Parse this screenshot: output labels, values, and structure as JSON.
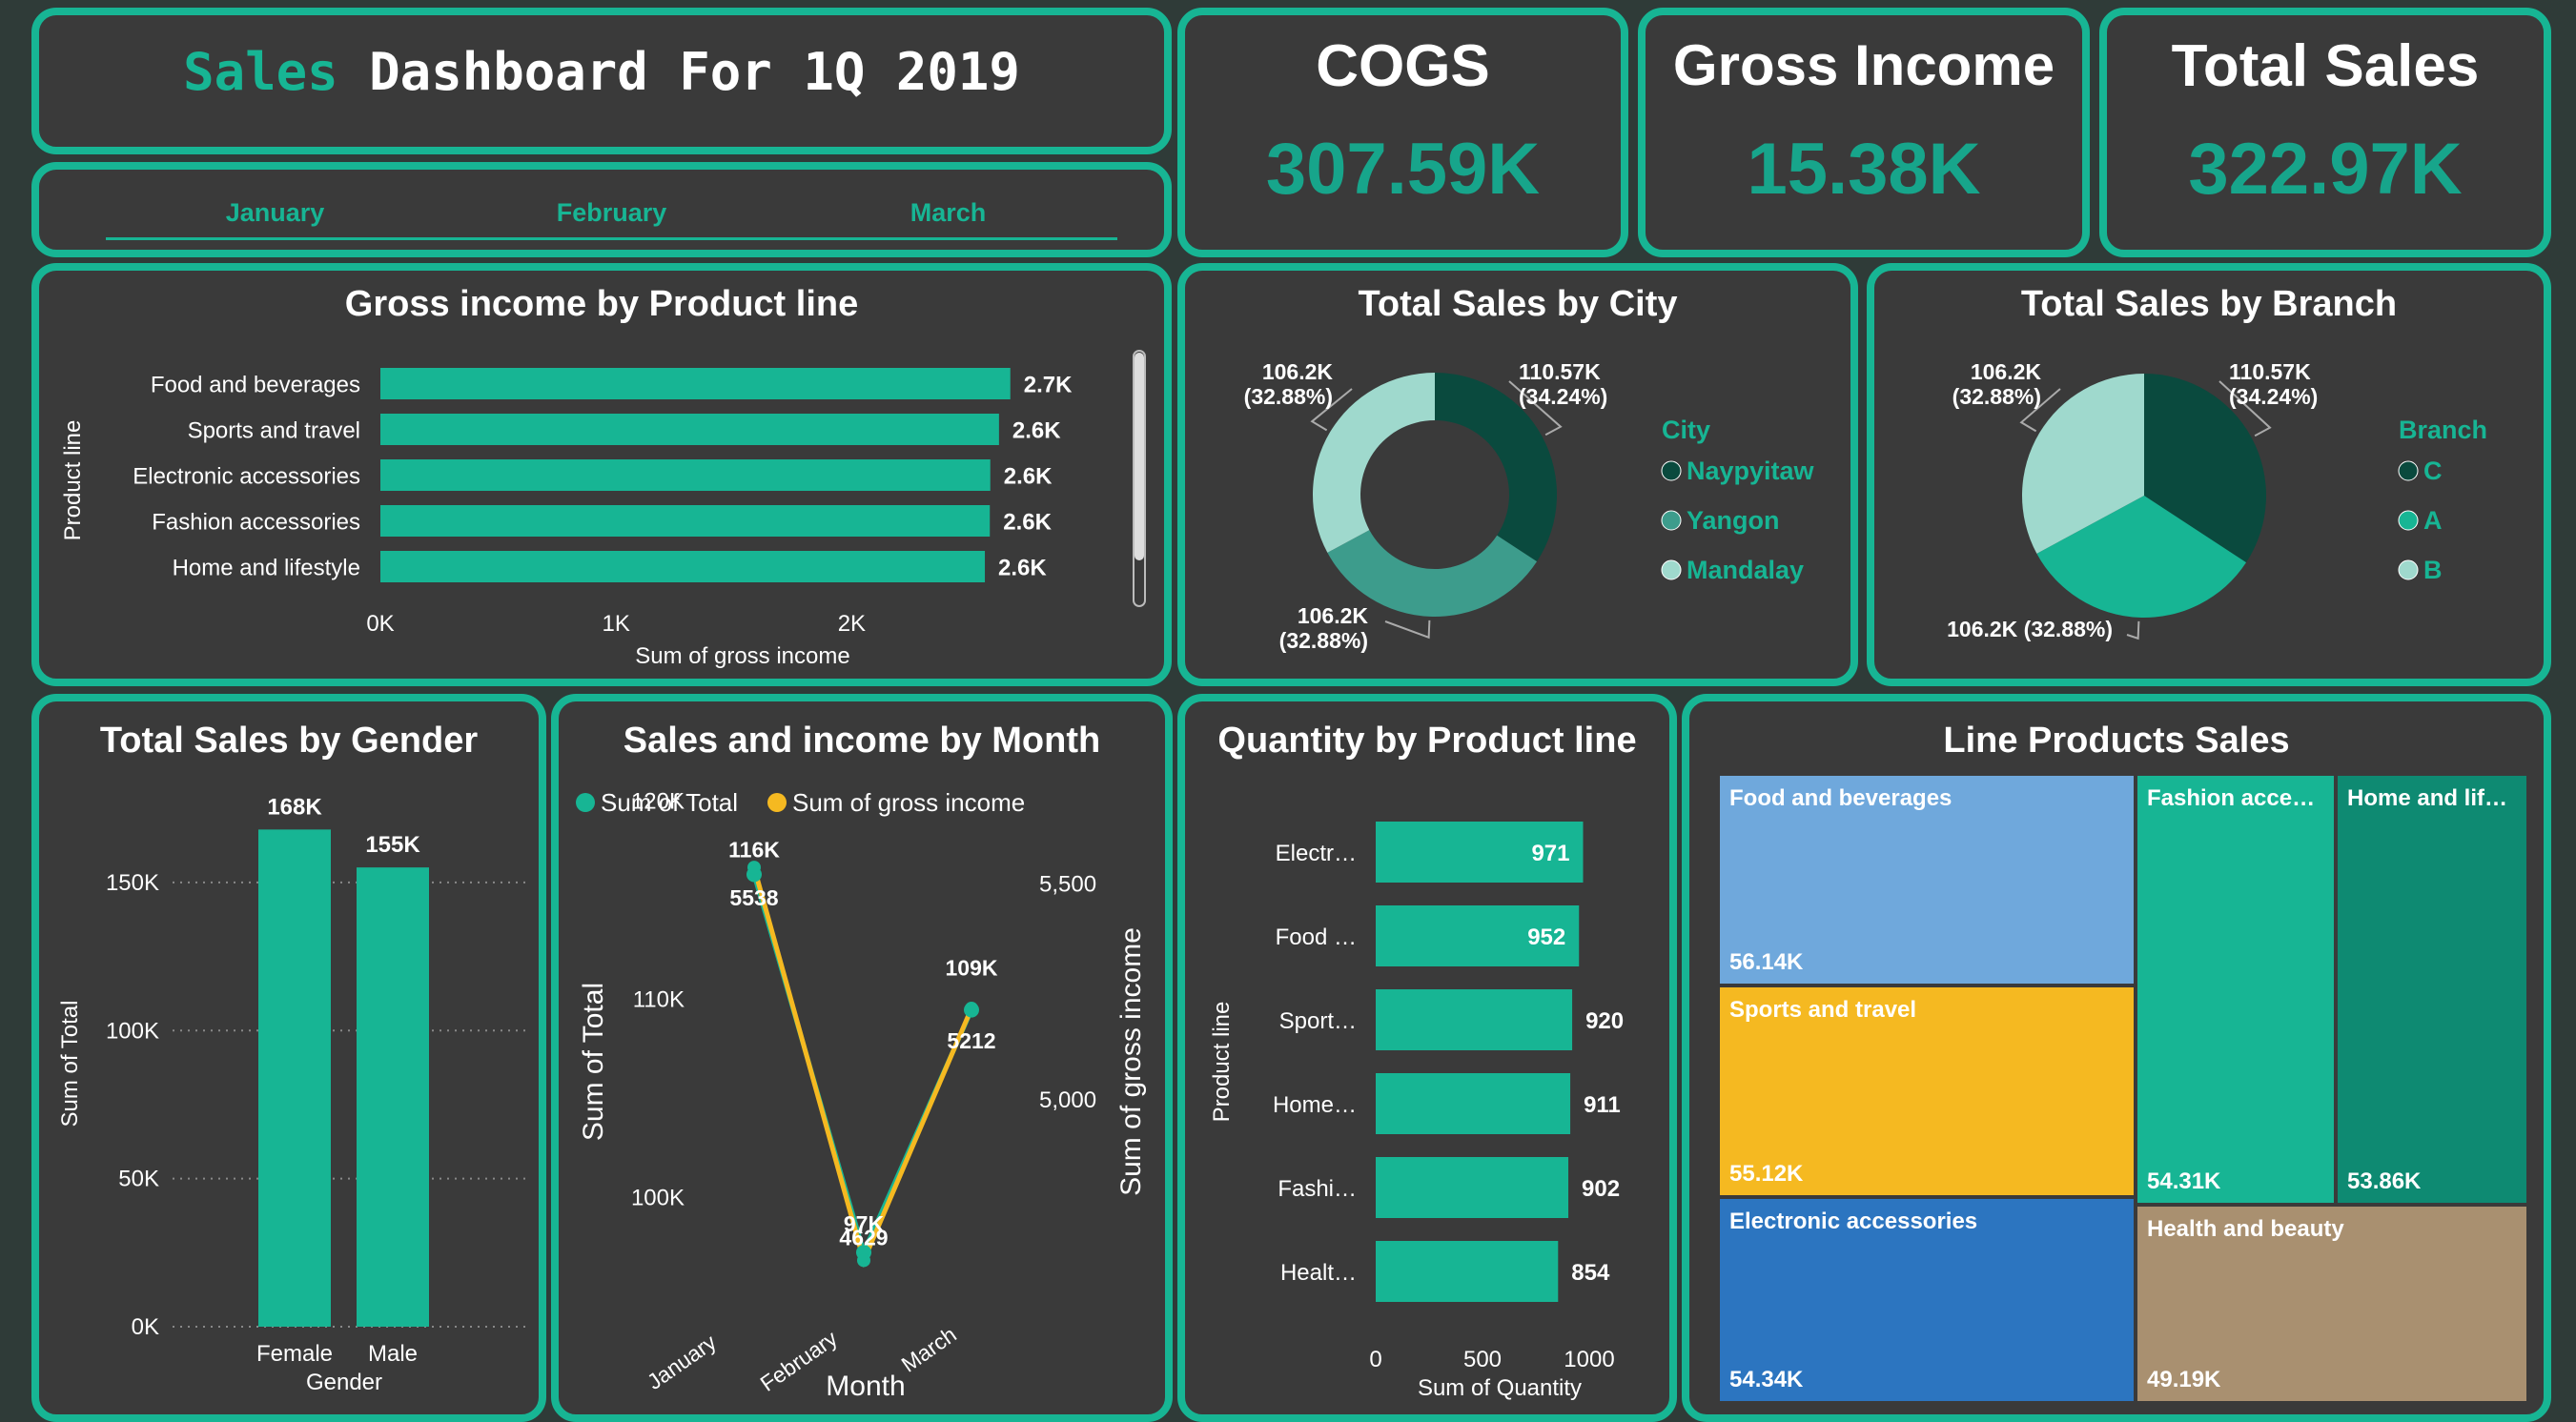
{
  "header": {
    "title_accent": "Sales",
    "title_rest": " Dashboard For 1Q 2019",
    "months": [
      "January",
      "February",
      "March"
    ]
  },
  "kpis": {
    "cogs": {
      "label": "COGS",
      "value": "307.59K"
    },
    "gross_income": {
      "label": "Gross Income",
      "value": "15.38K"
    },
    "total_sales": {
      "label": "Total Sales",
      "value": "322.97K"
    }
  },
  "colors": {
    "teal": "#17b594",
    "dark_teal": "#0a4a3e",
    "mid_teal": "#3d9c8c",
    "light_teal": "#9fd9cd",
    "yellow": "#f5b921",
    "card_bg": "#3a3a3a"
  },
  "chart_data": [
    {
      "id": "gross_income_by_product_line",
      "type": "bar",
      "orientation": "horizontal",
      "title": "Gross income by Product line",
      "xlabel": "Sum of gross income",
      "ylabel": "Product line",
      "categories": [
        "Food and beverages",
        "Sports and travel",
        "Electronic accessories",
        "Fashion accessories",
        "Home and lifestyle"
      ],
      "values": [
        2673,
        2625,
        2588,
        2586,
        2565
      ],
      "data_labels": [
        "2.7K",
        "2.6K",
        "2.6K",
        "2.6K",
        "2.6K"
      ],
      "xticks": [
        "0K",
        "1K",
        "2K"
      ],
      "xlim": [
        0,
        2670
      ]
    },
    {
      "id": "total_sales_by_city",
      "type": "pie",
      "donut": true,
      "title": "Total Sales by City",
      "legend_title": "City",
      "legend_position": "right",
      "labels": [
        "Naypyitaw",
        "Yangon",
        "Mandalay"
      ],
      "values": [
        110.57,
        106.2,
        106.2
      ],
      "data_labels": [
        "110.57K\n(34.24%)",
        "106.2K\n(32.88%)",
        "106.2K\n(32.88%)"
      ],
      "colors": [
        "#0a4a3e",
        "#3d9c8c",
        "#9fd9cd"
      ]
    },
    {
      "id": "total_sales_by_branch",
      "type": "pie",
      "donut": false,
      "title": "Total Sales by Branch",
      "legend_title": "Branch",
      "legend_position": "right",
      "labels": [
        "C",
        "A",
        "B"
      ],
      "values": [
        110.57,
        106.2,
        106.2
      ],
      "data_labels": [
        "110.57K\n(34.24%)",
        "106.2K (32.88%)",
        "106.2K\n(32.88%)"
      ],
      "colors": [
        "#0a4a3e",
        "#17b594",
        "#9fd9cd"
      ]
    },
    {
      "id": "total_sales_by_gender",
      "type": "bar",
      "title": "Total Sales by Gender",
      "xlabel": "Gender",
      "ylabel": "Sum of Total",
      "categories": [
        "Female",
        "Male"
      ],
      "values": [
        167883,
        155084
      ],
      "data_labels": [
        "168K",
        "155K"
      ],
      "yticks": [
        "0K",
        "50K",
        "100K",
        "150K"
      ],
      "ylim": [
        0,
        168000
      ]
    },
    {
      "id": "sales_and_income_by_month",
      "type": "line",
      "title": "Sales and income by Month",
      "xlabel": "Month",
      "ylabel": "Sum of Total",
      "y2label": "Sum of gross income",
      "legend_position": "top",
      "categories": [
        "January",
        "February",
        "March"
      ],
      "series": [
        {
          "name": "Sum of Total",
          "values": [
            116292,
            97219,
            109456
          ],
          "labels": [
            "116K",
            "97K",
            "109K"
          ],
          "axis": "left"
        },
        {
          "name": "Sum of gross income",
          "values": [
            5538,
            4629,
            5212
          ],
          "labels": [
            "5538",
            "4629",
            "5212"
          ],
          "axis": "right"
        }
      ],
      "yticks": [
        "100K",
        "110K",
        "120K"
      ],
      "y2ticks": [
        "5,000",
        "5,500"
      ],
      "ylim": [
        94000,
        118000
      ],
      "y2lim": [
        4500,
        5600
      ]
    },
    {
      "id": "quantity_by_product_line",
      "type": "bar",
      "orientation": "horizontal",
      "title": "Quantity by Product line",
      "xlabel": "Sum of Quantity",
      "ylabel": "Product line",
      "categories": [
        "Electr…",
        "Food …",
        "Sport…",
        "Home…",
        "Fashi…",
        "Healt…"
      ],
      "values": [
        971,
        952,
        920,
        911,
        902,
        854
      ],
      "xticks": [
        "0",
        "500",
        "1000"
      ],
      "xlim": [
        0,
        1000
      ]
    },
    {
      "id": "line_products_sales",
      "type": "treemap",
      "title": "Line Products Sales",
      "items": [
        {
          "label": "Food and beverages",
          "value": "56.14K",
          "color": "#6fa8dc"
        },
        {
          "label": "Sports and travel",
          "value": "55.12K",
          "color": "#f5b921"
        },
        {
          "label": "Electronic accessories",
          "value": "54.34K",
          "color": "#2c75c0"
        },
        {
          "label": "Fashion acce…",
          "value": "54.31K",
          "color": "#17b594"
        },
        {
          "label": "Home and lif…",
          "value": "53.86K",
          "color": "#0e8a72"
        },
        {
          "label": "Health and beauty",
          "value": "49.19K",
          "color": "#a99070"
        }
      ]
    }
  ]
}
